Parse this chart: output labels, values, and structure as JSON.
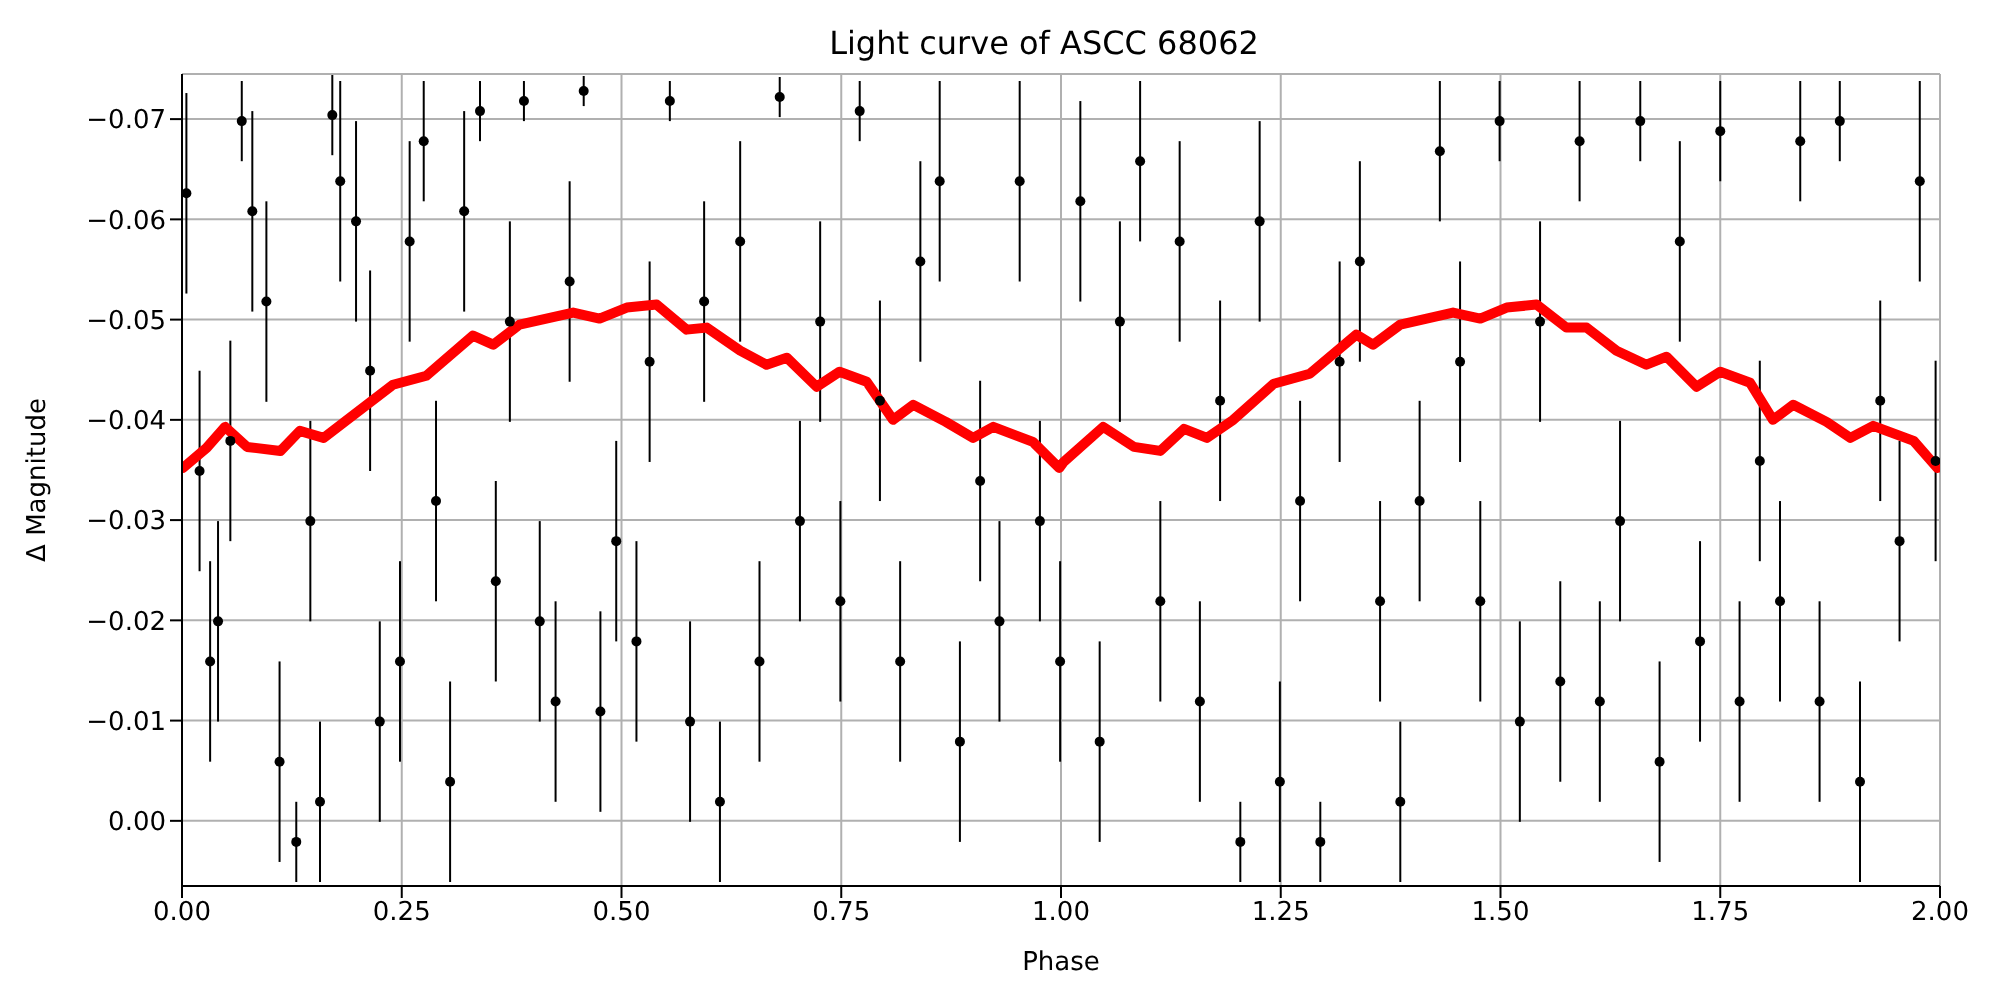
{
  "chart_data": {
    "type": "scatter",
    "title": "Light curve of ASCC 68062",
    "xlabel": "Phase",
    "ylabel": "Δ Magnitude",
    "xlim": [
      0,
      2
    ],
    "ylim": [
      0.0065,
      -0.0745
    ],
    "xticks": [
      {
        "value": 0,
        "label": "0.00"
      },
      {
        "value": 0.25,
        "label": "0.25"
      },
      {
        "value": 0.5,
        "label": "0.50"
      },
      {
        "value": 0.75,
        "label": "0.75"
      },
      {
        "value": 1,
        "label": "1.00"
      },
      {
        "value": 1.25,
        "label": "1.25"
      },
      {
        "value": 1.5,
        "label": "1.50"
      },
      {
        "value": 1.75,
        "label": "1.75"
      },
      {
        "value": 2,
        "label": "2.00"
      }
    ],
    "yticks": [
      {
        "value": -0.07,
        "label": "−0.07"
      },
      {
        "value": -0.06,
        "label": "−0.06"
      },
      {
        "value": -0.05,
        "label": "−0.05"
      },
      {
        "value": -0.04,
        "label": "−0.04"
      },
      {
        "value": -0.03,
        "label": "−0.03"
      },
      {
        "value": -0.02,
        "label": "−0.02"
      },
      {
        "value": -0.01,
        "label": "−0.01"
      },
      {
        "value": 0,
        "label": "0.00"
      }
    ],
    "grid": true,
    "series": [
      {
        "color": "#000000",
        "marker": "circle",
        "x": [
          0.005,
          0.02,
          0.032,
          0.041,
          0.055,
          0.068,
          0.08,
          0.096,
          0.111,
          0.13,
          0.146,
          0.157,
          0.171,
          0.18,
          0.198,
          0.214,
          0.225,
          0.248,
          0.259,
          0.275,
          0.289,
          0.305,
          0.321,
          0.339,
          0.357,
          0.373,
          0.389,
          0.407,
          0.425,
          0.441,
          0.457,
          0.476,
          0.494,
          0.517,
          0.532,
          0.555,
          0.578,
          0.594,
          0.612,
          0.635,
          0.657,
          0.68,
          0.703,
          0.726,
          0.749,
          0.771,
          0.794,
          0.817,
          0.84,
          0.862,
          0.885,
          0.908,
          0.93,
          0.953,
          0.976,
          0.999,
          1.022,
          1.044,
          1.067,
          1.09,
          1.113,
          1.135,
          1.158,
          1.181,
          1.204,
          1.226,
          1.249,
          1.272,
          1.295,
          1.317,
          1.34,
          1.363,
          1.386,
          1.408,
          1.431,
          1.454,
          1.477,
          1.499,
          1.522,
          1.545,
          1.568,
          1.59,
          1.613,
          1.636,
          1.659,
          1.681,
          1.704,
          1.727,
          1.75,
          1.772,
          1.795,
          1.818,
          1.841,
          1.863,
          1.886,
          1.909,
          1.932,
          1.954,
          1.977,
          1.995
        ],
        "values": [
          -0.0626,
          -0.0349,
          -0.0159,
          -0.0199,
          -0.0379,
          -0.0698,
          -0.0608,
          -0.0518,
          -0.0059,
          0.0021,
          -0.0299,
          -0.0019,
          -0.0704,
          -0.0638,
          -0.0598,
          -0.0449,
          -0.0099,
          -0.0159,
          -0.0578,
          -0.0678,
          -0.0319,
          -0.0039,
          -0.0608,
          -0.0708,
          -0.0239,
          -0.0498,
          -0.0718,
          -0.0199,
          -0.0119,
          -0.0538,
          -0.0728,
          -0.0109,
          -0.0279,
          -0.0179,
          -0.0458,
          -0.0718,
          -0.0099,
          -0.0518,
          -0.0019,
          -0.0578,
          -0.0159,
          -0.0722,
          -0.0299,
          -0.0498,
          -0.0219,
          -0.0708,
          -0.0419,
          -0.0159,
          -0.0558,
          -0.0638,
          -0.0079,
          -0.0339,
          -0.0199,
          -0.0638,
          -0.0299,
          -0.0159,
          -0.0618,
          -0.0079,
          -0.0498,
          -0.0658,
          -0.0219,
          -0.0578,
          -0.0119,
          -0.0419,
          0.0021,
          -0.0598,
          -0.0039,
          -0.0319,
          0.0021,
          -0.0458,
          -0.0558,
          -0.0219,
          -0.0019,
          -0.0319,
          -0.0668,
          -0.0458,
          -0.0219,
          -0.0698,
          -0.0099,
          -0.0498,
          -0.0139,
          -0.0678,
          -0.0119,
          -0.0299,
          -0.0698,
          -0.0059,
          -0.0578,
          -0.0179,
          -0.0688,
          -0.0119,
          -0.0359,
          -0.0219,
          -0.0678,
          -0.0119,
          -0.0698,
          -0.0039,
          -0.0419,
          -0.0279,
          -0.0638,
          -0.0359
        ],
        "errors": [
          0.01,
          0.01,
          0.01,
          0.01,
          0.01,
          0.004,
          0.01,
          0.01,
          0.01,
          0.004,
          0.01,
          0.008,
          0.004,
          0.01,
          0.01,
          0.01,
          0.01,
          0.01,
          0.01,
          0.006,
          0.01,
          0.01,
          0.01,
          0.003,
          0.01,
          0.01,
          0.002,
          0.01,
          0.01,
          0.01,
          0.0015,
          0.01,
          0.01,
          0.01,
          0.01,
          0.002,
          0.01,
          0.01,
          0.008,
          0.01,
          0.01,
          0.002,
          0.01,
          0.01,
          0.01,
          0.003,
          0.01,
          0.01,
          0.01,
          0.01,
          0.01,
          0.01,
          0.01,
          0.01,
          0.01,
          0.01,
          0.01,
          0.01,
          0.01,
          0.008,
          0.01,
          0.01,
          0.01,
          0.01,
          0.004,
          0.01,
          0.01,
          0.01,
          0.004,
          0.01,
          0.01,
          0.01,
          0.008,
          0.01,
          0.007,
          0.01,
          0.01,
          0.004,
          0.01,
          0.01,
          0.01,
          0.006,
          0.01,
          0.01,
          0.004,
          0.01,
          0.01,
          0.01,
          0.005,
          0.01,
          0.01,
          0.01,
          0.006,
          0.01,
          0.004,
          0.01,
          0.01,
          0.01,
          0.01,
          0.01
        ]
      },
      {
        "type": "line",
        "color": "#ff0000",
        "x": [
          0.001,
          0.028,
          0.049,
          0.074,
          0.112,
          0.134,
          0.161,
          0.191,
          0.24,
          0.278,
          0.331,
          0.354,
          0.384,
          0.445,
          0.475,
          0.506,
          0.54,
          0.574,
          0.597,
          0.635,
          0.665,
          0.688,
          0.722,
          0.748,
          0.779,
          0.809,
          0.832,
          0.869,
          0.9,
          0.923,
          0.968,
          0.998,
          1.003,
          1.048,
          1.083,
          1.113,
          1.14,
          1.166,
          1.196,
          1.242,
          1.283,
          1.336,
          1.355,
          1.386,
          1.446,
          1.477,
          1.507,
          1.541,
          1.575,
          1.598,
          1.632,
          1.666,
          1.689,
          1.723,
          1.75,
          1.784,
          1.81,
          1.833,
          1.871,
          1.898,
          1.924,
          1.97,
          1.997
        ],
        "values": [
          -0.0352,
          -0.0372,
          -0.0393,
          -0.0373,
          -0.0369,
          -0.0389,
          -0.0382,
          -0.0402,
          -0.0435,
          -0.0444,
          -0.0484,
          -0.0475,
          -0.0495,
          -0.0507,
          -0.0501,
          -0.0512,
          -0.0515,
          -0.049,
          -0.0492,
          -0.0469,
          -0.0455,
          -0.0462,
          -0.0433,
          -0.0448,
          -0.0438,
          -0.04,
          -0.0415,
          -0.0398,
          -0.0382,
          -0.0393,
          -0.0378,
          -0.0352,
          -0.0358,
          -0.0393,
          -0.0373,
          -0.0369,
          -0.0391,
          -0.0382,
          -0.04,
          -0.0436,
          -0.0446,
          -0.0485,
          -0.0475,
          -0.0495,
          -0.0507,
          -0.0501,
          -0.0512,
          -0.0515,
          -0.0492,
          -0.0492,
          -0.0469,
          -0.0455,
          -0.0463,
          -0.0433,
          -0.0448,
          -0.0437,
          -0.04,
          -0.0415,
          -0.0398,
          -0.0382,
          -0.0394,
          -0.0379,
          -0.0352
        ]
      }
    ]
  }
}
